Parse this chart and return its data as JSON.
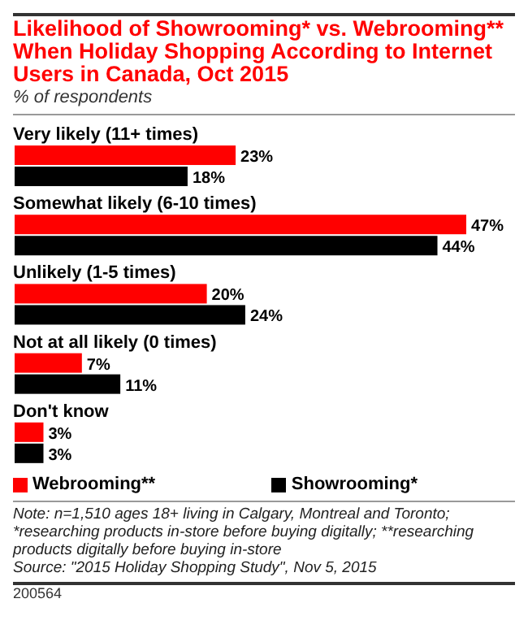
{
  "chart_data": {
    "type": "bar",
    "orientation": "horizontal",
    "title": "Likelihood of Showrooming* vs. Webrooming** When Holiday Shopping According to Internet Users in Canada, Oct 2015",
    "subtitle": "% of respondents",
    "categories": [
      "Very likely (11+ times)",
      "Somewhat likely (6-10 times)",
      "Unlikely (1-5 times)",
      "Not at all likely (0 times)",
      "Don't know"
    ],
    "series": [
      {
        "name": "Webrooming**",
        "color": "#ff0000",
        "values": [
          23,
          47,
          20,
          7,
          3
        ],
        "value_labels": [
          "23%",
          "47%",
          "20%",
          "7%",
          "3%"
        ]
      },
      {
        "name": "Showrooming*",
        "color": "#000000",
        "values": [
          18,
          44,
          24,
          11,
          3
        ],
        "value_labels": [
          "18%",
          "44%",
          "24%",
          "11%",
          "3%"
        ]
      }
    ],
    "legend": "bottom",
    "annotations": [
      "Note: n=1,510 ages 18+ living in Calgary, Montreal and Toronto; *researching products in-store before buying digitally; **researching products digitally before buying in-store",
      "Source: \"2015 Holiday Shopping Study\", Nov 5, 2015",
      "200564"
    ]
  }
}
